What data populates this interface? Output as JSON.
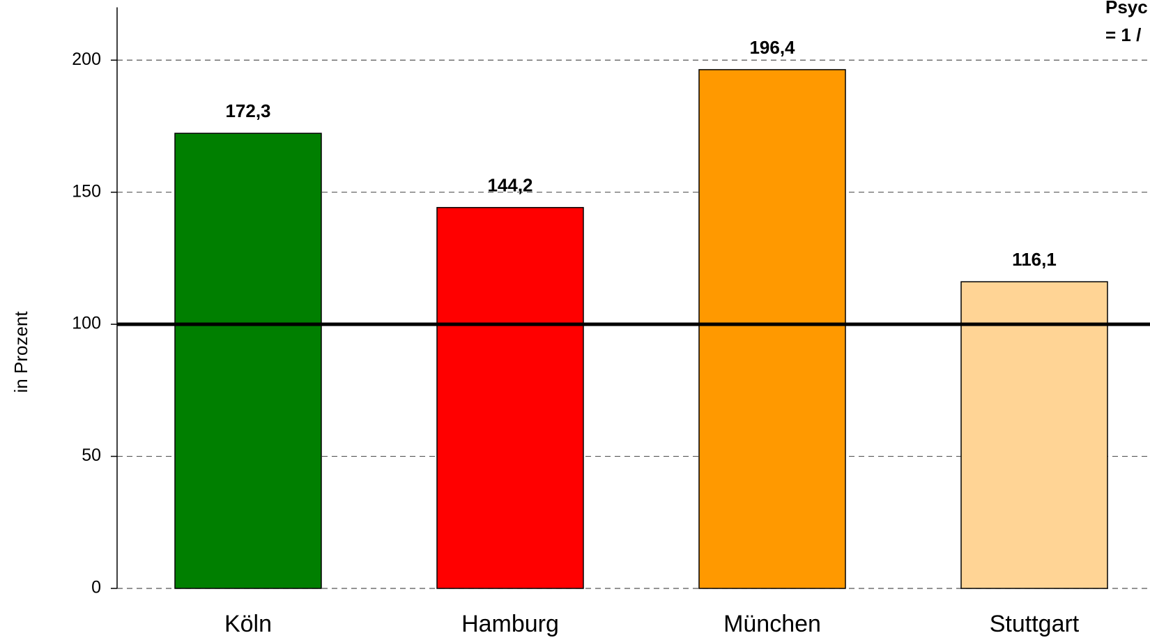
{
  "chart_data": {
    "type": "bar",
    "y_label": "in Prozent",
    "annotation": [
      "Psyc",
      "= 1 /"
    ],
    "categories": [
      "Köln",
      "Hamburg",
      "München",
      "Stuttgart"
    ],
    "values": [
      172.3,
      144.2,
      196.4,
      116.1
    ],
    "value_labels": [
      "172,3",
      "144,2",
      "196,4",
      "116,1"
    ],
    "colors": [
      "#007f00",
      "#ff0000",
      "#ff9900",
      "#ffd495"
    ],
    "reference_line": 100,
    "ylim": [
      0,
      220
    ],
    "yticks": [
      0,
      50,
      100,
      150,
      200
    ],
    "grid": true
  }
}
